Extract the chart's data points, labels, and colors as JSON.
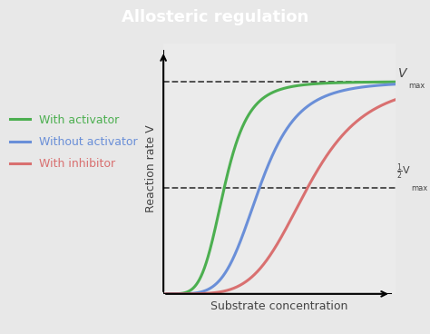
{
  "title": "Allosteric regulation",
  "title_bg_color": "#5aaa32",
  "title_text_color": "#ffffff",
  "bg_color": "#e8e8e8",
  "plot_bg_color": "#ebebeb",
  "xlabel": "Substrate concentration",
  "ylabel": "Reaction rate V",
  "curves": [
    {
      "label": "With activator",
      "color": "#4caf50",
      "n": 5.0,
      "K": 3.8
    },
    {
      "label": "Without activator",
      "color": "#6a8fd8",
      "n": 5.0,
      "K": 6.0
    },
    {
      "label": "With inhibitor",
      "color": "#d97070",
      "n": 5.0,
      "K": 9.0
    }
  ],
  "vmax": 1.0,
  "dashed_color": "#444444",
  "legend_colors": [
    "#4caf50",
    "#6a8fd8",
    "#d97070"
  ],
  "legend_labels": [
    "With activator",
    "Without activator",
    "With inhibitor"
  ],
  "xlim": [
    0,
    14.5
  ],
  "ylim": [
    0,
    1.18
  ]
}
